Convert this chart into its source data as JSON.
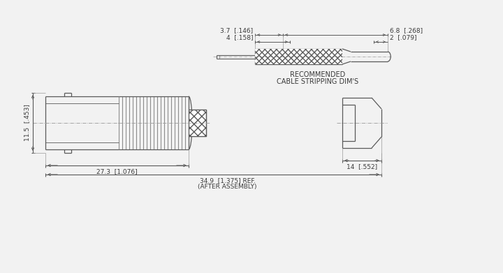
{
  "bg_color": "#f2f2f2",
  "line_color": "#5a5a5a",
  "text_color": "#3a3a3a",
  "dim_color": "#5a5a5a",
  "font_size": 6.5,
  "cable_strip": {
    "label1": "3.7  [.146]",
    "label2": "4  [.158]",
    "label3": "6.8  [.268]",
    "label4": "2  [.079]",
    "caption_line1": "RECOMMENDED",
    "caption_line2": "CABLE STRIPPING DIM'S"
  },
  "main_dims": {
    "height_label": "11.5  [.453]",
    "width1_label": "27.3  [1.076]",
    "width2_label": "34.9  [1.375] REF.",
    "width2_sub": "(AFTER ASSEMBLY)",
    "width3_label": "14  [.552]"
  }
}
